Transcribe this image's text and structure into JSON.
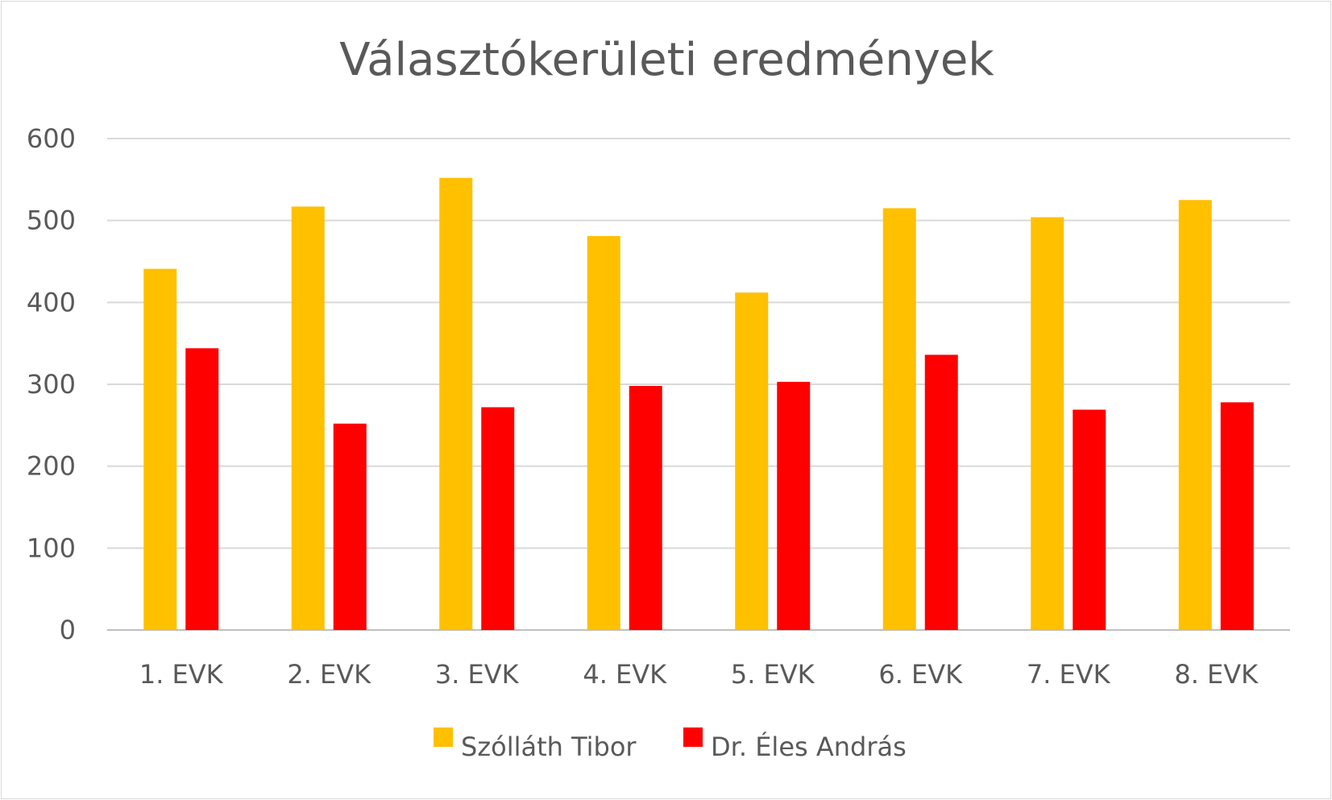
{
  "chart_data": {
    "type": "bar",
    "title": "Választókerületi eredmények",
    "categories": [
      "1. EVK",
      "2. EVK",
      "3. EVK",
      "4. EVK",
      "5. EVK",
      "6. EVK",
      "7. EVK",
      "8. EVK"
    ],
    "series": [
      {
        "name": "Szólláth Tibor",
        "color": "#FFC000",
        "values": [
          441,
          517,
          552,
          481,
          412,
          515,
          504,
          525
        ]
      },
      {
        "name": "Dr. Éles András",
        "color": "#FF0000",
        "values": [
          344,
          252,
          272,
          298,
          303,
          336,
          269,
          278
        ]
      }
    ],
    "ylim": [
      0,
      600
    ],
    "yticks": [
      0,
      100,
      200,
      300,
      400,
      500,
      600
    ],
    "grid": true,
    "legend_position": "bottom"
  }
}
